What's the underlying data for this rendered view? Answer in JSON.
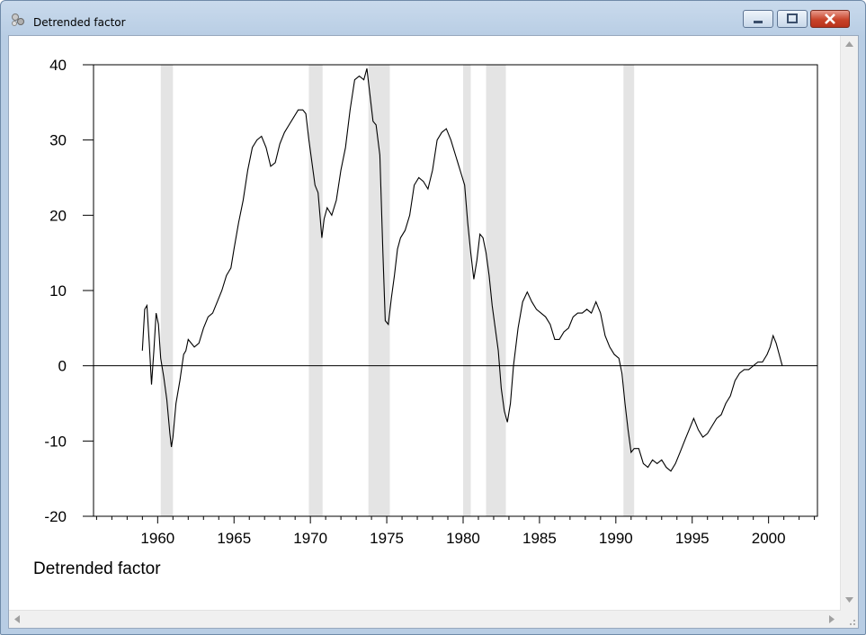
{
  "window": {
    "title": "Detrended factor"
  },
  "chart_data": {
    "type": "line",
    "title": "",
    "xlabel": "",
    "ylabel": "",
    "caption": "Detrended factor",
    "xlim": [
      1955.8,
      2003.2
    ],
    "ylim": [
      -20,
      40
    ],
    "y_ticks": [
      40,
      30,
      20,
      10,
      0,
      -10,
      -20
    ],
    "x_ticks": [
      1960,
      1965,
      1970,
      1975,
      1980,
      1985,
      1990,
      1995,
      2000
    ],
    "grid": false,
    "zero_line": true,
    "recession_shading": [
      [
        1960.2,
        1961.0
      ],
      [
        1969.9,
        1970.8
      ],
      [
        1973.8,
        1975.2
      ],
      [
        1980.0,
        1980.5
      ],
      [
        1981.5,
        1982.8
      ],
      [
        1990.5,
        1991.2
      ]
    ],
    "series": [
      {
        "x": [
          1959.0,
          1959.15,
          1959.3,
          1959.45,
          1959.6,
          1959.75,
          1959.9,
          1960.05,
          1960.2,
          1960.4,
          1960.6,
          1960.8,
          1960.9,
          1961.0,
          1961.2,
          1961.45,
          1961.7,
          1961.85,
          1962.0,
          1962.2,
          1962.4,
          1962.7,
          1963.0,
          1963.3,
          1963.6,
          1963.9,
          1964.2,
          1964.5,
          1964.8,
          1965.0,
          1965.3,
          1965.6,
          1965.9,
          1966.2,
          1966.5,
          1966.8,
          1967.1,
          1967.4,
          1967.7,
          1968.0,
          1968.3,
          1968.6,
          1968.9,
          1969.2,
          1969.5,
          1969.7,
          1969.9,
          1970.1,
          1970.3,
          1970.5,
          1970.75,
          1970.9,
          1971.1,
          1971.4,
          1971.7,
          1972.0,
          1972.3,
          1972.6,
          1972.9,
          1973.2,
          1973.5,
          1973.7,
          1973.9,
          1974.1,
          1974.3,
          1974.55,
          1974.75,
          1974.9,
          1975.1,
          1975.3,
          1975.5,
          1975.7,
          1975.9,
          1976.2,
          1976.5,
          1976.8,
          1977.1,
          1977.4,
          1977.7,
          1978.0,
          1978.3,
          1978.6,
          1978.9,
          1979.2,
          1979.5,
          1979.8,
          1980.1,
          1980.3,
          1980.5,
          1980.7,
          1980.9,
          1981.1,
          1981.3,
          1981.5,
          1981.7,
          1981.9,
          1982.1,
          1982.3,
          1982.5,
          1982.7,
          1982.9,
          1983.1,
          1983.3,
          1983.6,
          1983.9,
          1984.2,
          1984.5,
          1984.8,
          1985.1,
          1985.4,
          1985.7,
          1986.0,
          1986.3,
          1986.6,
          1986.9,
          1987.2,
          1987.5,
          1987.8,
          1988.1,
          1988.4,
          1988.7,
          1989.0,
          1989.3,
          1989.6,
          1989.9,
          1990.2,
          1990.4,
          1990.6,
          1990.8,
          1991.0,
          1991.2,
          1991.5,
          1991.8,
          1992.1,
          1992.4,
          1992.7,
          1993.0,
          1993.3,
          1993.6,
          1993.9,
          1994.2,
          1994.5,
          1994.8,
          1995.1,
          1995.4,
          1995.7,
          1996.0,
          1996.3,
          1996.6,
          1996.9,
          1997.2,
          1997.5,
          1997.8,
          1998.1,
          1998.4,
          1998.7,
          1999.0,
          1999.3,
          1999.6,
          1999.9,
          2000.1,
          2000.3,
          2000.5,
          2000.7,
          2000.9
        ],
        "y": [
          2.0,
          7.5,
          8.0,
          3.0,
          -2.5,
          2.0,
          7.0,
          5.5,
          1.0,
          -1.5,
          -4.5,
          -9.0,
          -10.8,
          -9.5,
          -5.0,
          -2.0,
          1.5,
          2.0,
          3.5,
          3.0,
          2.5,
          3.0,
          5.0,
          6.5,
          7.0,
          8.5,
          10.0,
          12.0,
          13.0,
          15.5,
          19.0,
          22.0,
          26.0,
          29.0,
          30.0,
          30.5,
          29.0,
          26.5,
          27.0,
          29.5,
          31.0,
          32.0,
          33.0,
          34.0,
          34.0,
          33.5,
          30.0,
          27.0,
          24.0,
          23.0,
          17.0,
          19.5,
          21.0,
          20.0,
          22.0,
          26.0,
          29.0,
          34.0,
          38.0,
          38.5,
          38.0,
          39.5,
          36.0,
          32.5,
          32.0,
          28.0,
          15.0,
          6.0,
          5.5,
          9.0,
          12.0,
          15.5,
          17.0,
          18.0,
          20.0,
          24.0,
          25.0,
          24.5,
          23.5,
          26.0,
          30.0,
          31.0,
          31.5,
          30.0,
          28.0,
          26.0,
          24.0,
          19.0,
          15.0,
          11.5,
          14.0,
          17.5,
          17.0,
          15.0,
          12.0,
          8.0,
          5.0,
          2.0,
          -3.0,
          -6.0,
          -7.5,
          -5.0,
          0.0,
          5.0,
          8.5,
          9.8,
          8.5,
          7.5,
          7.0,
          6.5,
          5.5,
          3.5,
          3.5,
          4.5,
          5.0,
          6.5,
          7.0,
          7.0,
          7.5,
          7.0,
          8.5,
          7.0,
          4.0,
          2.5,
          1.5,
          1.0,
          -1.0,
          -5.0,
          -8.5,
          -11.5,
          -11.0,
          -11.0,
          -13.0,
          -13.5,
          -12.5,
          -13.0,
          -12.5,
          -13.5,
          -14.0,
          -13.0,
          -11.5,
          -10.0,
          -8.5,
          -7.0,
          -8.5,
          -9.5,
          -9.0,
          -8.0,
          -7.0,
          -6.5,
          -5.0,
          -4.0,
          -2.0,
          -1.0,
          -0.5,
          -0.5,
          0.0,
          0.5,
          0.5,
          1.5,
          2.5,
          4.0,
          3.0,
          1.5,
          0.0
        ]
      }
    ]
  }
}
